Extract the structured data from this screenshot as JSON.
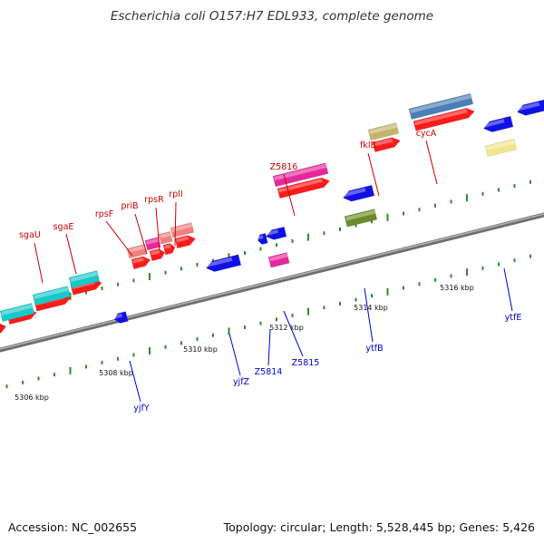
{
  "title": "Escherichia coli O157:H7 EDL933, complete genome",
  "footer": {
    "accession": "Accession: NC_002655",
    "summary": "Topology: circular; Length: 5,528,445 bp; Genes: 5,426"
  },
  "colors": {
    "backbone": "#8c8c8c",
    "tick": "#2e8b2e",
    "forward_label": "#cc0000",
    "reverse_label": "#0000cc",
    "cds_red": "#ff1a1a",
    "cyan": "#19c8c8",
    "salmon": "#f08080",
    "magenta": "#e6289b",
    "khaki": "#c2b46a",
    "steelblue": "#4a7fb5",
    "blue": "#1010e6",
    "olive": "#6a8c2a",
    "paleyellow": "#f0e68c"
  },
  "scale_labels": [
    {
      "text": "5306 kbp"
    },
    {
      "text": "5308 kbp"
    },
    {
      "text": "5310 kbp"
    },
    {
      "text": "5312 kbp"
    },
    {
      "text": "5314 kbp"
    },
    {
      "text": "5316 kbp"
    }
  ],
  "forward_labels": [
    {
      "text": "sgaU"
    },
    {
      "text": "sgaE"
    },
    {
      "text": "rpsF"
    },
    {
      "text": "priB"
    },
    {
      "text": "rpsR"
    },
    {
      "text": "rplI"
    },
    {
      "text": "Z5816"
    },
    {
      "text": "fklB"
    },
    {
      "text": "cycA"
    }
  ],
  "reverse_labels": [
    {
      "text": "yjfY"
    },
    {
      "text": "yjfZ"
    },
    {
      "text": "Z5814"
    },
    {
      "text": "Z5815"
    },
    {
      "text": "ytfB"
    },
    {
      "text": "ytfE"
    }
  ]
}
